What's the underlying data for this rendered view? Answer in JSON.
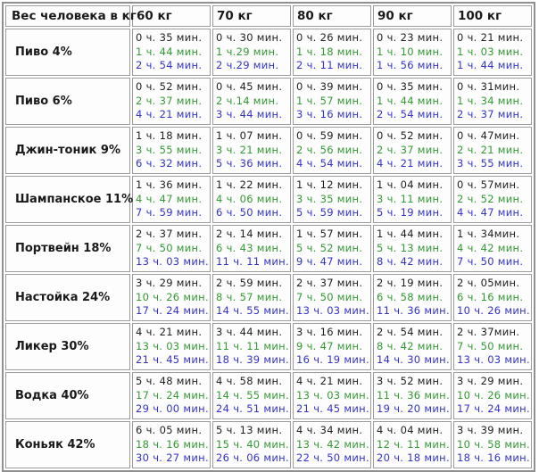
{
  "chart_data": {
    "type": "table",
    "corner_header": "Вес человека в кг",
    "columns": [
      "60 кг",
      "70 кг",
      "80 кг",
      "90 кг",
      "100 кг"
    ],
    "dose_line_colors": [
      "#1f1f1f",
      "#339933",
      "#3333cc"
    ],
    "rows": [
      {
        "label": "Пиво 4%",
        "times": [
          [
            "0 ч. 35 мин.",
            "1 ч. 44 мин.",
            "2 ч. 54 мин."
          ],
          [
            "0 ч. 30 мин.",
            "1 ч.29 мин.",
            "2 ч.29 мин."
          ],
          [
            "0 ч. 26 мин.",
            "1 ч. 18 мин.",
            "2 ч. 11 мин."
          ],
          [
            "0 ч. 23 мин.",
            "1 ч. 10 мин.",
            "1 ч. 56 мин."
          ],
          [
            "0 ч. 21 мин.",
            "1 ч. 03 мин.",
            "1 ч. 44 мин."
          ]
        ]
      },
      {
        "label": "Пиво 6%",
        "times": [
          [
            "0 ч. 52 мин.",
            "2 ч. 37 мин.",
            "4 ч. 21 мин."
          ],
          [
            "0 ч. 45 мин.",
            "2 ч.14 мин.",
            "3 ч. 44 мин."
          ],
          [
            "0 ч. 39 мин.",
            "1 ч. 57 мин.",
            "3 ч. 16 мин."
          ],
          [
            "0 ч. 35 мин.",
            "1 ч. 44 мин.",
            "2 ч. 54 мин."
          ],
          [
            "0 ч. 31мин.",
            "1 ч. 34 мин.",
            "2 ч. 37 мин."
          ]
        ]
      },
      {
        "label": "Джин-тоник 9%",
        "times": [
          [
            "1 ч. 18 мин.",
            "3 ч. 55 мин.",
            "6 ч. 32 мин."
          ],
          [
            "1 ч. 07 мин.",
            "3 ч. 21 мин.",
            "5 ч. 36 мин."
          ],
          [
            "0 ч. 59 мин.",
            "2 ч. 56 мин.",
            "4 ч. 54 мин."
          ],
          [
            "0 ч. 52 мин.",
            "2 ч. 37 мин.",
            "4 ч. 21 мин."
          ],
          [
            "0 ч. 47мин.",
            "2 ч. 21 мин.",
            "3 ч. 55 мин."
          ]
        ]
      },
      {
        "label": "Шампанское 11%",
        "times": [
          [
            "1 ч. 36 мин.",
            "4 ч. 47 мин.",
            "7 ч. 59 мин."
          ],
          [
            "1 ч. 22 мин.",
            "4 ч. 06 мин.",
            "6 ч. 50 мин."
          ],
          [
            "1 ч. 12 мин.",
            "3 ч. 35 мин.",
            "5 ч. 59 мин."
          ],
          [
            "1 ч. 04 мин.",
            "3 ч. 11 мин.",
            "5 ч. 19 мин."
          ],
          [
            "0 ч. 57мин.",
            "2 ч. 52 мин.",
            "4 ч. 47 мин."
          ]
        ]
      },
      {
        "label": "Портвейн 18%",
        "times": [
          [
            "2 ч. 37 мин.",
            "7 ч. 50 мин.",
            "13 ч. 03 мин."
          ],
          [
            "2 ч. 14 мин.",
            "6 ч. 43 мин.",
            "11 ч. 11 мин."
          ],
          [
            "1 ч. 57 мин.",
            "5 ч. 52 мин.",
            "9 ч. 47 мин."
          ],
          [
            "1 ч. 44 мин.",
            "5 ч. 13 мин.",
            "8 ч. 42 мин."
          ],
          [
            "1 ч. 34мин.",
            "4 ч. 42 мин.",
            "7 ч. 50 мин."
          ]
        ]
      },
      {
        "label": "Настойка 24%",
        "times": [
          [
            "3 ч. 29 мин.",
            "10 ч. 26 мин.",
            "17 ч. 24 мин."
          ],
          [
            "2 ч. 59 мин.",
            "8 ч. 57 мин.",
            "14 ч. 55 мин."
          ],
          [
            "2 ч. 37 мин.",
            "7 ч. 50 мин.",
            "13 ч. 03 мин."
          ],
          [
            "2 ч. 19 мин.",
            "6 ч. 58 мин.",
            "11 ч. 36 мин."
          ],
          [
            "2 ч. 05мин.",
            "6 ч. 16 мин.",
            "10 ч. 26 мин."
          ]
        ]
      },
      {
        "label": "Ликер 30%",
        "times": [
          [
            "4 ч. 21 мин.",
            "13 ч. 03 мин.",
            "21 ч. 45 мин."
          ],
          [
            "3 ч. 44 мин.",
            "11 ч. 11 мин.",
            "18 ч. 39 мин."
          ],
          [
            "3 ч. 16 мин.",
            "9 ч. 47 мин.",
            "16 ч. 19 мин."
          ],
          [
            "2 ч. 54 мин.",
            "8 ч. 42 мин.",
            "14 ч. 30 мин."
          ],
          [
            "2 ч. 37мин.",
            "7 ч. 50 мин.",
            "13 ч. 03 мин."
          ]
        ]
      },
      {
        "label": "Водка 40%",
        "times": [
          [
            "5 ч. 48 мин.",
            "17 ч. 24 мин.",
            "29 ч. 00 мин."
          ],
          [
            "4 ч. 58 мин.",
            "14 ч. 55 мин.",
            "24 ч. 51 мин."
          ],
          [
            "4 ч. 21 мин.",
            "13 ч. 03 мин.",
            "21 ч. 45 мин."
          ],
          [
            "3 ч. 52 мин.",
            "11 ч. 36 мин.",
            "19 ч. 20 мин."
          ],
          [
            "3 ч. 29 мин.",
            "10 ч. 26 мин.",
            "17 ч. 24 мин."
          ]
        ]
      },
      {
        "label": "Коньяк 42%",
        "times": [
          [
            "6 ч. 05 мин.",
            "18 ч. 16 мин.",
            "30 ч. 27 мин."
          ],
          [
            "5 ч. 13 мин.",
            "15 ч. 40 мин.",
            "26 ч. 06 мин."
          ],
          [
            "4 ч. 34 мин.",
            "13 ч. 42 мин.",
            "22 ч. 50 мин."
          ],
          [
            "4 ч. 04 мин.",
            "12 ч. 11 мин.",
            "20 ч. 18 мин."
          ],
          [
            "3 ч. 39 мин.",
            "10 ч. 58 мин.",
            "18 ч. 16 мин."
          ]
        ]
      }
    ]
  }
}
